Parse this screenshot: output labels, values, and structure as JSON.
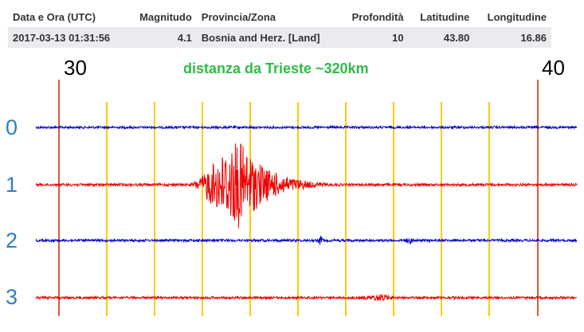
{
  "table": {
    "headers": [
      "Data e Ora (UTC)",
      "Magnitudo",
      "Provincia/Zona",
      "Profondità",
      "Latitudine",
      "Longitudine"
    ],
    "row": [
      "2017-03-13 01:31:56",
      "4.1",
      "Bosnia and Herz. [Land]",
      "10",
      "43.80",
      "16.86"
    ]
  },
  "plot": {
    "start_minute": "30",
    "end_minute": "40",
    "title": "distanza da Trieste ~320km",
    "trace_labels": [
      "0",
      "1",
      "2",
      "3"
    ]
  },
  "colors": {
    "trace_blue": "#0000cc",
    "trace_red": "#ee0000",
    "minute_line": "#ffcc00",
    "boundary_line": "#cc2200",
    "label_blue": "#2f7fc0",
    "title_green": "#2ebd46",
    "row_bg": "#ebebef"
  }
}
